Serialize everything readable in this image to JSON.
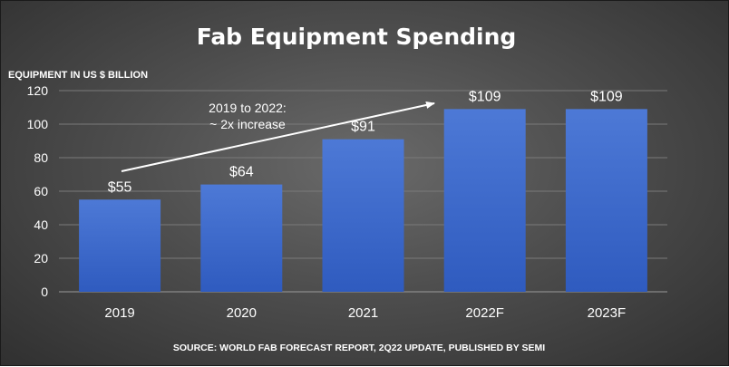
{
  "colors": {
    "bar_top": "#4d79d6",
    "bar_bottom": "#2f5bbf",
    "text": "#ffffff"
  },
  "chart_data": {
    "type": "bar",
    "title": "Fab Equipment Spending",
    "ylabel": "EQUIPMENT IN US $ BILLION",
    "xlabel": "",
    "categories": [
      "2019",
      "2020",
      "2021",
      "2022F",
      "2023F"
    ],
    "values": [
      55,
      64,
      91,
      109,
      109
    ],
    "data_labels": [
      "$55",
      "$64",
      "$91",
      "$109",
      "$109"
    ],
    "ylim": [
      0,
      120
    ],
    "yticks": [
      "0",
      "20",
      "40",
      "60",
      "80",
      "100",
      "120"
    ],
    "grid": true,
    "legend": "none",
    "annotation": {
      "line1": "2019 to 2022:",
      "line2": "~ 2x increase"
    },
    "source": "SOURCE: WORLD FAB FORECAST REPORT, 2Q22 UPDATE, PUBLISHED BY SEMI"
  }
}
